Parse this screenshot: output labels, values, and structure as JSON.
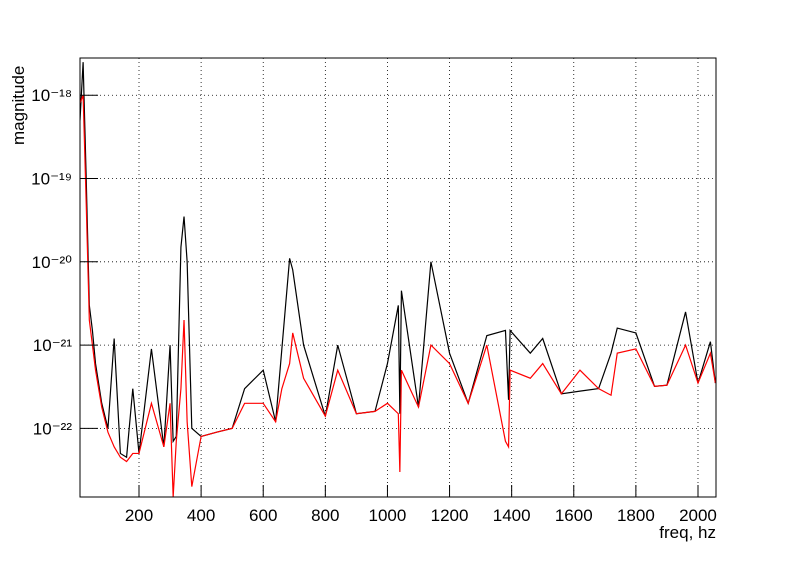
{
  "chart_data": {
    "type": "line",
    "xlabel": "freq, hz",
    "ylabel": "magnitude",
    "log_y": true,
    "grid": true,
    "xlim": [
      10,
      2058
    ],
    "ylim": [
      1.5e-23,
      2.8e-18
    ],
    "xticks": [
      200,
      400,
      600,
      800,
      1000,
      1200,
      1400,
      1600,
      1800,
      2000
    ],
    "yticks": [
      {
        "value": 1e-22,
        "label": "10⁻²²"
      },
      {
        "value": 1e-21,
        "label": "10⁻²¹"
      },
      {
        "value": 1e-20,
        "label": "10⁻²⁰"
      },
      {
        "value": 1e-19,
        "label": "10⁻¹⁹"
      },
      {
        "value": 1e-18,
        "label": "10⁻¹⁸"
      }
    ],
    "x": [
      10,
      20,
      30,
      40,
      50,
      60,
      80,
      100,
      120,
      140,
      160,
      180,
      200,
      240,
      280,
      300,
      310,
      320,
      335,
      345,
      355,
      370,
      400,
      450,
      500,
      540,
      600,
      640,
      660,
      685,
      695,
      730,
      800,
      840,
      900,
      960,
      1000,
      1035,
      1040,
      1045,
      1100,
      1140,
      1200,
      1260,
      1320,
      1380,
      1390,
      1395,
      1460,
      1500,
      1560,
      1620,
      1680,
      1720,
      1740,
      1800,
      1860,
      1900,
      1960,
      2000,
      2040,
      2056
    ],
    "series": [
      {
        "color": "#000000",
        "values": [
          5e-19,
          2.5e-18,
          1e-19,
          3e-21,
          1.5e-21,
          6e-22,
          2e-22,
          1e-22,
          1.2e-21,
          5e-23,
          4.5e-23,
          3e-22,
          5e-23,
          9e-22,
          6e-23,
          1e-21,
          7e-23,
          8e-23,
          1.5e-20,
          3.5e-20,
          1e-20,
          1e-22,
          8e-23,
          9e-23,
          1e-22,
          3e-22,
          5e-22,
          1.2e-22,
          9e-22,
          1.1e-20,
          8e-21,
          1e-21,
          1.4e-22,
          1e-21,
          1.5e-22,
          1.6e-22,
          6e-22,
          3e-21,
          1.5e-22,
          4.5e-21,
          1.8e-22,
          1e-20,
          8e-22,
          2e-22,
          1.3e-21,
          1.5e-21,
          2.2e-22,
          1.5e-21,
          8e-22,
          1.2e-21,
          2.6e-22,
          2.8e-22,
          3e-22,
          8e-22,
          1.6e-21,
          1.4e-21,
          3.2e-22,
          3.3e-22,
          2.5e-21,
          3.5e-22,
          1.1e-21,
          3.5e-22
        ]
      },
      {
        "color": "#ff0000",
        "values": [
          8e-19,
          1e-18,
          5e-20,
          2e-21,
          1e-21,
          5e-22,
          1.8e-22,
          9e-23,
          6e-23,
          4.5e-23,
          4e-23,
          5e-23,
          5e-23,
          2e-22,
          6e-23,
          2e-22,
          1.5e-23,
          7e-23,
          3e-22,
          2e-21,
          1.2e-22,
          2e-23,
          8e-23,
          9e-23,
          1e-22,
          2e-22,
          2e-22,
          1.2e-22,
          3e-22,
          6e-22,
          1.4e-21,
          4e-22,
          1.4e-22,
          5e-22,
          1.5e-22,
          1.6e-22,
          2e-22,
          1.5e-22,
          3e-23,
          5e-22,
          1.8e-22,
          1e-21,
          6e-22,
          2e-22,
          1e-21,
          7e-23,
          6e-23,
          5e-22,
          4e-22,
          6e-22,
          2.6e-22,
          5e-22,
          3e-22,
          2.5e-22,
          8e-22,
          9e-22,
          3.2e-22,
          3.3e-22,
          1e-21,
          3.5e-22,
          8e-22,
          3.5e-22
        ]
      }
    ]
  }
}
